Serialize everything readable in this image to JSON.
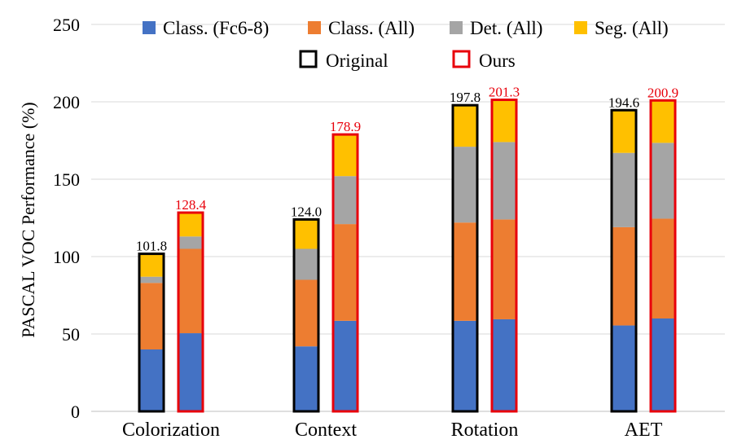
{
  "chart_data": {
    "type": "bar",
    "stacked": true,
    "title": "",
    "xlabel": "",
    "ylabel": "PASCAL VOC Performance (%)",
    "ylim": [
      0,
      250
    ],
    "yticks": [
      0,
      50,
      100,
      150,
      200,
      250
    ],
    "grid": true,
    "legend_position": "top",
    "categories": [
      "Colorization",
      "Context",
      "Rotation",
      "AET"
    ],
    "series": [
      {
        "name": "Class. (Fc6-8)",
        "color": "#4472C4"
      },
      {
        "name": "Class. (All)",
        "color": "#ED7D31"
      },
      {
        "name": "Det. (All)",
        "color": "#A5A5A5"
      },
      {
        "name": "Seg. (All)",
        "color": "#FFC000"
      }
    ],
    "variants": [
      {
        "name": "Original",
        "outline_color": "#000000",
        "label_color": "#000000"
      },
      {
        "name": "Ours",
        "outline_color": "#E8000B",
        "label_color": "#E8000B"
      }
    ],
    "bars": [
      {
        "category": "Colorization",
        "variant": "Original",
        "values": [
          40,
          43,
          4,
          14.8
        ],
        "total_label": "101.8"
      },
      {
        "category": "Colorization",
        "variant": "Ours",
        "values": [
          50.5,
          54.5,
          8,
          15.4
        ],
        "total_label": "128.4"
      },
      {
        "category": "Context",
        "variant": "Original",
        "values": [
          42,
          43,
          20,
          19
        ],
        "total_label": "124.0"
      },
      {
        "category": "Context",
        "variant": "Ours",
        "values": [
          58.5,
          62.5,
          31,
          26.9
        ],
        "total_label": "178.9"
      },
      {
        "category": "Rotation",
        "variant": "Original",
        "values": [
          58.5,
          63.5,
          49,
          26.8
        ],
        "total_label": "197.8"
      },
      {
        "category": "Rotation",
        "variant": "Ours",
        "values": [
          59.5,
          64.5,
          50,
          27.3
        ],
        "total_label": "201.3"
      },
      {
        "category": "AET",
        "variant": "Original",
        "values": [
          55.5,
          63.5,
          48,
          27.6
        ],
        "total_label": "194.6"
      },
      {
        "category": "AET",
        "variant": "Ours",
        "values": [
          60,
          64.5,
          49,
          27.4
        ],
        "total_label": "200.9"
      }
    ]
  }
}
